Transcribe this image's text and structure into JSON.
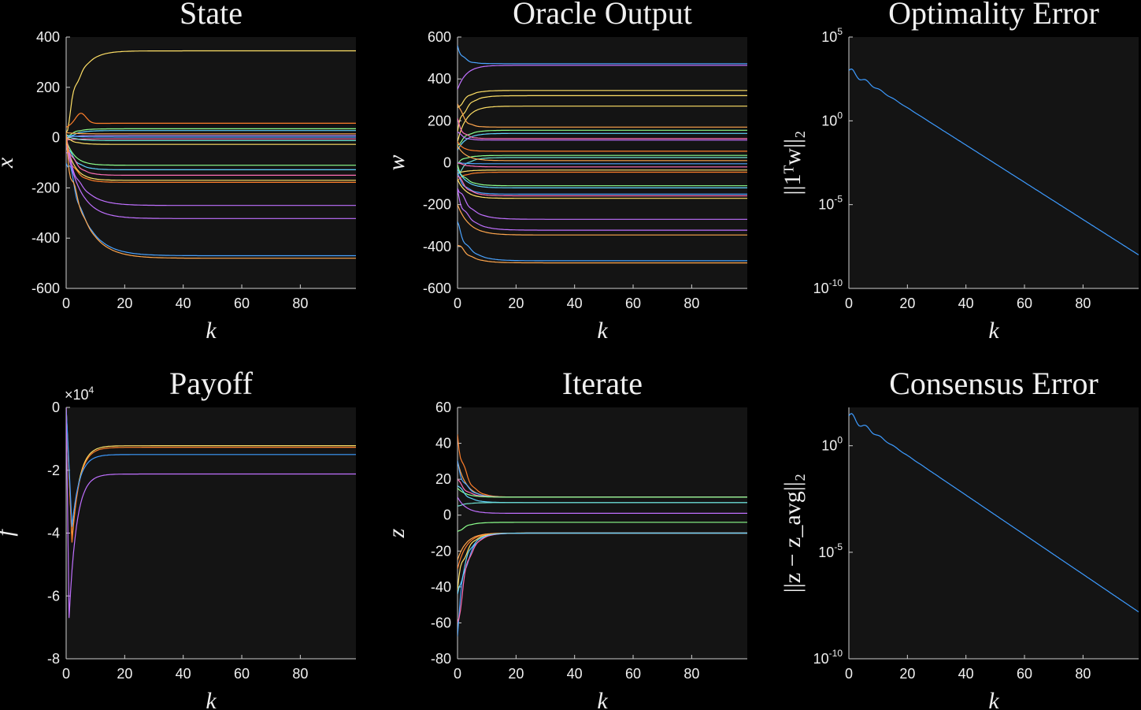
{
  "chart_data": [
    {
      "id": "state",
      "type": "line",
      "title": "State",
      "xlabel": "k",
      "ylabel": "x",
      "xlim": [
        0,
        99
      ],
      "ylim": [
        -600,
        400
      ],
      "xticks": [
        0,
        20,
        40,
        60,
        80
      ],
      "yticks": [
        -600,
        -400,
        -200,
        0,
        200,
        400
      ],
      "yticklabels": [
        "-600",
        "-400",
        "-200",
        "0",
        "200",
        "400"
      ],
      "series": [
        {
          "color": "#ffe066",
          "start": 20,
          "final": 345,
          "tau": 4
        },
        {
          "color": "#ff7f2a",
          "start": 40,
          "final": 57,
          "peak": 100
        },
        {
          "color": "#8cff8c",
          "start": 0,
          "final": 35
        },
        {
          "color": "#5fd3ff",
          "start": -10,
          "final": 28
        },
        {
          "color": "#ffa64d",
          "start": 20,
          "final": 15
        },
        {
          "color": "#b48cff",
          "start": 0,
          "final": 8
        },
        {
          "color": "#4aa3ff",
          "start": 10,
          "final": 2
        },
        {
          "color": "#ff6fb5",
          "start": -10,
          "final": -5
        },
        {
          "color": "#6fe0d0",
          "start": 10,
          "final": -12
        },
        {
          "color": "#ffe066",
          "start": 0,
          "final": -27
        },
        {
          "color": "#8cff8c",
          "start": -10,
          "final": -110
        },
        {
          "color": "#5fd3ff",
          "start": -20,
          "final": -128
        },
        {
          "color": "#ff6fb5",
          "start": 0,
          "final": -150
        },
        {
          "color": "#ffe066",
          "start": -20,
          "final": -170
        },
        {
          "color": "#ff7f2a",
          "start": -30,
          "final": -178
        },
        {
          "color": "#c070ff",
          "start": -40,
          "final": -270,
          "tau": 5
        },
        {
          "color": "#c070ff",
          "start": -30,
          "final": -322,
          "tau": 5
        },
        {
          "color": "#4aa3ff",
          "start": -40,
          "final": -470,
          "tau": 6
        },
        {
          "color": "#ffa64d",
          "start": -30,
          "final": -480,
          "tau": 6
        }
      ]
    },
    {
      "id": "oracle",
      "type": "line",
      "title": "Oracle Output",
      "xlabel": "k",
      "ylabel": "w",
      "xlim": [
        0,
        99
      ],
      "ylim": [
        -600,
        600
      ],
      "xticks": [
        0,
        20,
        40,
        60,
        80
      ],
      "yticks": [
        -600,
        -400,
        -200,
        0,
        200,
        400,
        600
      ],
      "yticklabels": [
        "-600",
        "-400",
        "-200",
        "0",
        "200",
        "400",
        "600"
      ],
      "series": [
        {
          "color": "#4aa3ff",
          "start": 560,
          "final": 473,
          "tau": 2
        },
        {
          "color": "#c070ff",
          "start": 350,
          "final": 465,
          "tau": 3
        },
        {
          "color": "#ffe066",
          "start": 250,
          "final": 345,
          "tau": 3
        },
        {
          "color": "#ffe066",
          "start": 150,
          "final": 320,
          "tau": 3
        },
        {
          "color": "#ffe066",
          "start": 100,
          "final": 270,
          "tau": 3
        },
        {
          "color": "#ffa64d",
          "start": 300,
          "final": 170,
          "tau": 2
        },
        {
          "color": "#8cff8c",
          "start": 80,
          "final": 155,
          "tau": 3
        },
        {
          "color": "#5fd3ff",
          "start": 60,
          "final": 140,
          "tau": 3
        },
        {
          "color": "#ff6fb5",
          "start": 200,
          "final": 115,
          "tau": 2
        },
        {
          "color": "#c070ff",
          "start": 150,
          "final": 108,
          "tau": 2
        },
        {
          "color": "#ff7f2a",
          "start": 100,
          "final": 55,
          "tau": 2
        },
        {
          "color": "#8cff8c",
          "start": 0,
          "final": 35
        },
        {
          "color": "#6fe0d0",
          "start": -60,
          "final": 25
        },
        {
          "color": "#ffa64d",
          "start": 80,
          "final": 10
        },
        {
          "color": "#4aa3ff",
          "start": 0,
          "final": -5
        },
        {
          "color": "#ff6fb5",
          "start": 0,
          "final": -20
        },
        {
          "color": "#ffe066",
          "start": -50,
          "final": -35
        },
        {
          "color": "#ff7f2a",
          "start": -80,
          "final": -45
        },
        {
          "color": "#8cff8c",
          "start": -20,
          "final": -110
        },
        {
          "color": "#5fd3ff",
          "start": -30,
          "final": -120
        },
        {
          "color": "#4aa3ff",
          "start": -60,
          "final": -150
        },
        {
          "color": "#ff6fb5",
          "start": -50,
          "final": -158
        },
        {
          "color": "#ffe066",
          "start": -80,
          "final": -170
        },
        {
          "color": "#c070ff",
          "start": -100,
          "final": -270,
          "tau": 4
        },
        {
          "color": "#c070ff",
          "start": -150,
          "final": -322,
          "tau": 4
        },
        {
          "color": "#ffa64d",
          "start": -200,
          "final": -345,
          "tau": 4
        },
        {
          "color": "#4aa3ff",
          "start": -300,
          "final": -468,
          "tau": 4
        },
        {
          "color": "#ffa64d",
          "start": -380,
          "final": -478,
          "tau": 4
        }
      ]
    },
    {
      "id": "optimality",
      "type": "line",
      "title": "Optimality Error",
      "xlabel": "k",
      "ylabel": "||1ᵀw||₂",
      "log_y": true,
      "xlim": [
        0,
        99
      ],
      "ylim_exp": [
        -10,
        5
      ],
      "xticks": [
        0,
        20,
        40,
        60,
        80
      ],
      "yticks_exp": [
        -10,
        -5,
        0,
        5
      ],
      "series": [
        {
          "color": "#3d9bff",
          "log_start": 3.0,
          "log_end": -8.0
        }
      ]
    },
    {
      "id": "payoff",
      "type": "line",
      "title": "Payoff",
      "xlabel": "k",
      "ylabel": "f",
      "ylim": [
        -8,
        0
      ],
      "xlim": [
        0,
        99
      ],
      "exponent_label": "×10",
      "exponent_power": "4",
      "xticks": [
        0,
        20,
        40,
        60,
        80
      ],
      "yticks": [
        -8,
        -6,
        -4,
        -2,
        0
      ],
      "yticklabels": [
        "-8",
        "-6",
        "-4",
        "-2",
        "0"
      ],
      "series": [
        {
          "color": "#ffe066",
          "start": 0,
          "min": -4.2,
          "min_k": 2,
          "final": -1.22
        },
        {
          "color": "#ff7f2a",
          "start": 0,
          "min": -4.3,
          "min_k": 2,
          "final": -1.27
        },
        {
          "color": "#3d9bff",
          "start": 0,
          "min": -3.8,
          "min_k": 2,
          "final": -1.5
        },
        {
          "color": "#c070ff",
          "start": 0,
          "min": -6.7,
          "min_k": 1,
          "final": -2.12
        }
      ]
    },
    {
      "id": "iterate",
      "type": "line",
      "title": "Iterate",
      "xlabel": "k",
      "ylabel": "z",
      "xlim": [
        0,
        99
      ],
      "ylim": [
        -80,
        60
      ],
      "xticks": [
        0,
        20,
        40,
        60,
        80
      ],
      "yticks": [
        -80,
        -60,
        -40,
        -20,
        0,
        20,
        40,
        60
      ],
      "yticklabels": [
        "-80",
        "-60",
        "-40",
        "-20",
        "0",
        "20",
        "40",
        "60"
      ],
      "series": [
        {
          "color": "#ff7f2a",
          "start": 45,
          "final": 10
        },
        {
          "color": "#ffa64d",
          "start": 30,
          "final": 10
        },
        {
          "color": "#4aa3ff",
          "start": 28,
          "final": 10
        },
        {
          "color": "#ff6fb5",
          "start": 20,
          "final": 10
        },
        {
          "color": "#8cff8c",
          "start": 15,
          "final": 10
        },
        {
          "color": "#5fd3ff",
          "start": 18,
          "final": 7
        },
        {
          "color": "#6fe0d0",
          "start": 5,
          "final": 7
        },
        {
          "color": "#c070ff",
          "start": 10,
          "final": 1
        },
        {
          "color": "#8cff8c",
          "start": -10,
          "final": -4
        },
        {
          "color": "#ffe066",
          "start": -40,
          "final": -10
        },
        {
          "color": "#ff7f2a",
          "start": -30,
          "final": -10
        },
        {
          "color": "#4aa3ff",
          "start": -60,
          "final": -10
        },
        {
          "color": "#ff6fb5",
          "start": -64,
          "final": -10
        },
        {
          "color": "#ffa64d",
          "start": -25,
          "final": -10
        },
        {
          "color": "#5fd3ff",
          "start": -50,
          "final": -10
        }
      ]
    },
    {
      "id": "consensus",
      "type": "line",
      "title": "Consensus Error",
      "xlabel": "k",
      "ylabel": "||z − z_avg||₂",
      "log_y": true,
      "xlim": [
        0,
        99
      ],
      "ylim_exp": [
        -10,
        1.8
      ],
      "xticks": [
        0,
        20,
        40,
        60,
        80
      ],
      "yticks_exp": [
        -10,
        -5,
        0
      ],
      "series": [
        {
          "color": "#3d9bff",
          "log_start": 1.4,
          "log_end": -7.8
        }
      ]
    }
  ]
}
